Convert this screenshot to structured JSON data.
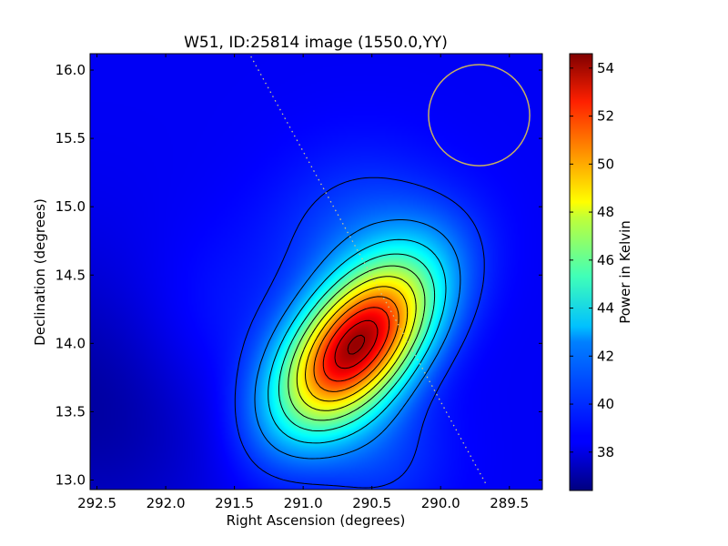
{
  "chart_data": {
    "type": "heatmap",
    "title": "W51, ID:25814 image (1550.0,YY)",
    "xlabel": "Right Ascension (degrees)",
    "ylabel": "Declination (degrees)",
    "colorbar_label": "Power in Kelvin",
    "xlim": [
      292.55,
      289.26
    ],
    "ylim": [
      12.93,
      16.12
    ],
    "x_ticks": [
      292.5,
      292.0,
      291.5,
      291.0,
      290.5,
      290.0,
      289.5
    ],
    "x_tick_labels": [
      "292.5",
      "292.0",
      "291.5",
      "291.0",
      "290.5",
      "290.0",
      "289.5"
    ],
    "y_ticks": [
      13.0,
      13.5,
      14.0,
      14.5,
      15.0,
      15.5,
      16.0
    ],
    "y_tick_labels": [
      "13.0",
      "13.5",
      "14.0",
      "14.5",
      "15.0",
      "15.5",
      "16.0"
    ],
    "colorbar_range": [
      36.4,
      54.6
    ],
    "colorbar_ticks": [
      38,
      40,
      42,
      44,
      46,
      48,
      50,
      52,
      54
    ],
    "colorbar_tick_labels": [
      "38",
      "40",
      "42",
      "44",
      "46",
      "48",
      "50",
      "52",
      "54"
    ],
    "colormap": "jet",
    "peak": {
      "ra": 290.62,
      "dec": 13.98,
      "value": 54.5
    },
    "background_level": 38.5,
    "contour_levels": [
      39.5,
      41.0,
      42.5,
      44.0,
      45.5,
      47.0,
      48.5,
      50.0,
      51.5,
      53.0,
      54.0
    ],
    "beam_circle": {
      "ra": 289.72,
      "dec": 15.67,
      "radius_deg": 0.37,
      "color": "#c8b060"
    },
    "galactic_plane_line": {
      "points": [
        [
          291.38,
          16.1
        ],
        [
          289.67,
          12.97
        ]
      ],
      "color": "#c8c890",
      "style": "dotted"
    }
  }
}
